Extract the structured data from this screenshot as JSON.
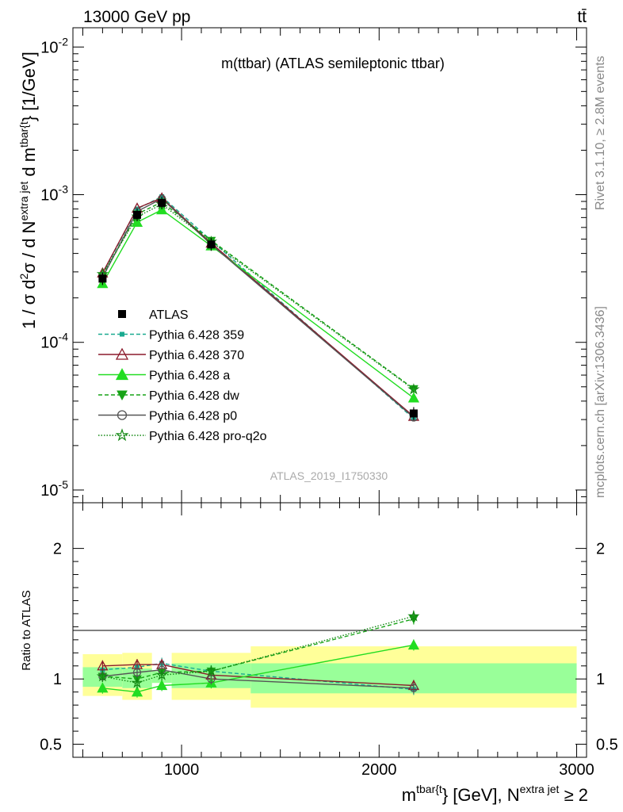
{
  "header": {
    "left": "13000 GeV pp",
    "right": "tt̄"
  },
  "side_text": {
    "rivet": "Rivet 3.1.10, ≥ 2.8M events",
    "source": "mcplots.cern.ch [arXiv:1306.3436]"
  },
  "chart_data": {
    "type": "line",
    "title": "m(ttbar) (ATLAS semileptonic ttbar)",
    "watermark": "ATLAS_2019_I1750330",
    "ylabel": {
      "a": "1 / σ d",
      "sup1": "2",
      "b": "σ / d N",
      "sup2": "extra jet",
      "c": " d m",
      "sup3": "tbar{t",
      "d": "} [1/GeV]"
    },
    "xlabel": {
      "a": "m",
      "sup1": "tbar{t",
      "b": "} [GeV], N",
      "sup2": "extra jet",
      "c": " ≥ 2"
    },
    "ratio_ylabel": "Ratio to ATLAS",
    "xlim": [
      450,
      3050
    ],
    "ylim_main": [
      8.2e-06,
      0.0135
    ],
    "ylog": true,
    "ylim_ratio": [
      0.4,
      2.35
    ],
    "x_ticks": [
      {
        "value": 1000,
        "label": "1000"
      },
      {
        "value": 2000,
        "label": "2000"
      },
      {
        "value": 3000,
        "label": "3000"
      }
    ],
    "y_ticks_main": [
      {
        "value": 0.01,
        "base": "10",
        "exp": "-2"
      },
      {
        "value": 0.001,
        "base": "10",
        "exp": "-3"
      },
      {
        "value": 0.0001,
        "base": "10",
        "exp": "-4"
      },
      {
        "value": 1e-05,
        "base": "10",
        "exp": "-5"
      }
    ],
    "y_ticks_ratio": [
      {
        "value": 2,
        "label": "2"
      },
      {
        "value": 1,
        "label": "1"
      },
      {
        "value": 0.5,
        "label": "0.5"
      }
    ],
    "bins": [
      {
        "lo": 500,
        "hi": 700
      },
      {
        "lo": 700,
        "hi": 850
      },
      {
        "lo": 850,
        "hi": 950
      },
      {
        "lo": 950,
        "hi": 1350
      },
      {
        "lo": 1350,
        "hi": 3000
      }
    ],
    "band_inner": [
      0.94,
      0.93,
      0.97,
      0.93,
      0.89
    ],
    "band_inner_hi": [
      1.09,
      1.08,
      1.06,
      1.12,
      1.12
    ],
    "band_outer": [
      0.87,
      0.84,
      0.97,
      0.84,
      0.78
    ],
    "band_outer_hi": [
      1.19,
      1.2,
      1.06,
      1.2,
      1.25
    ],
    "x": [
      600,
      775,
      900,
      1150,
      2175
    ],
    "data": {
      "name": "ATLAS",
      "values": [
        0.00027,
        0.00073,
        0.00088,
        0.00046,
        3.3e-05
      ]
    },
    "series": [
      {
        "name": "Pythia 6.428 359",
        "color": "#1aaa90",
        "marker": "square-small",
        "dash": "5,3",
        "values": [
          0.00029,
          0.0008,
          0.00097,
          0.00049,
          3.05e-05
        ],
        "ratio": [
          1.07,
          1.09,
          1.12,
          1.06,
          0.92
        ]
      },
      {
        "name": "Pythia 6.428 370",
        "color": "#8b1a2b",
        "marker": "triangle-open",
        "dash": "",
        "values": [
          0.000295,
          0.00081,
          0.00095,
          0.00047,
          3.15e-05
        ],
        "ratio": [
          1.1,
          1.11,
          1.11,
          1.03,
          0.95
        ]
      },
      {
        "name": "Pythia 6.428 a",
        "color": "#22dd22",
        "marker": "triangle-filled",
        "dash": "",
        "values": [
          0.00025,
          0.00065,
          0.00079,
          0.00045,
          4.2e-05
        ],
        "ratio": [
          0.93,
          0.9,
          0.95,
          0.97,
          1.26
        ]
      },
      {
        "name": "Pythia 6.428 dw",
        "color": "#17a317",
        "marker": "triangle-down",
        "dash": "5,3",
        "values": [
          0.00028,
          0.00074,
          0.00089,
          0.00049,
          4.85e-05
        ],
        "ratio": [
          1.02,
          1.0,
          1.05,
          1.06,
          1.46
        ]
      },
      {
        "name": "Pythia 6.428 p0",
        "color": "#555555",
        "marker": "circle-open",
        "dash": "",
        "values": [
          0.000275,
          0.00077,
          0.00094,
          0.00046,
          3.1e-05
        ],
        "ratio": [
          1.02,
          1.05,
          1.07,
          1.0,
          0.93
        ]
      },
      {
        "name": "Pythia 6.428 pro-q2o",
        "color": "#128812",
        "marker": "star",
        "dash": "1.5,2",
        "values": [
          0.00029,
          0.00071,
          0.00086,
          0.00048,
          4.8e-05
        ],
        "ratio": [
          1.02,
          0.97,
          1.03,
          1.06,
          1.48
        ]
      }
    ]
  }
}
